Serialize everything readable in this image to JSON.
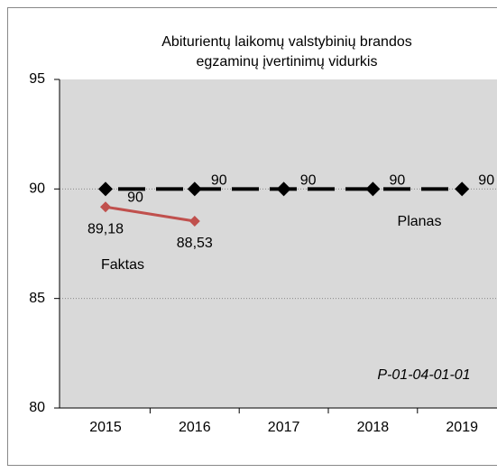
{
  "chart_data": {
    "type": "line",
    "title": [
      "Abiturientų laikomų valstybinių brandos",
      "egzaminų įvertinimų vidurkis"
    ],
    "categories": [
      "2015",
      "2016",
      "2017",
      "2018",
      "2019"
    ],
    "series": [
      {
        "name": "Planas",
        "color": "#000000",
        "values": [
          90,
          90,
          90,
          90,
          90
        ],
        "dashed": true
      },
      {
        "name": "Faktas",
        "color": "#c0504d",
        "values": [
          89.18,
          88.53,
          null,
          null,
          null
        ],
        "value_labels": [
          "89,18",
          "88,53",
          null,
          null,
          null
        ]
      }
    ],
    "annotation": "P-01-04-01-01",
    "ylim": [
      80,
      95
    ],
    "yticks": [
      80,
      85,
      90,
      95
    ],
    "grid": true
  }
}
